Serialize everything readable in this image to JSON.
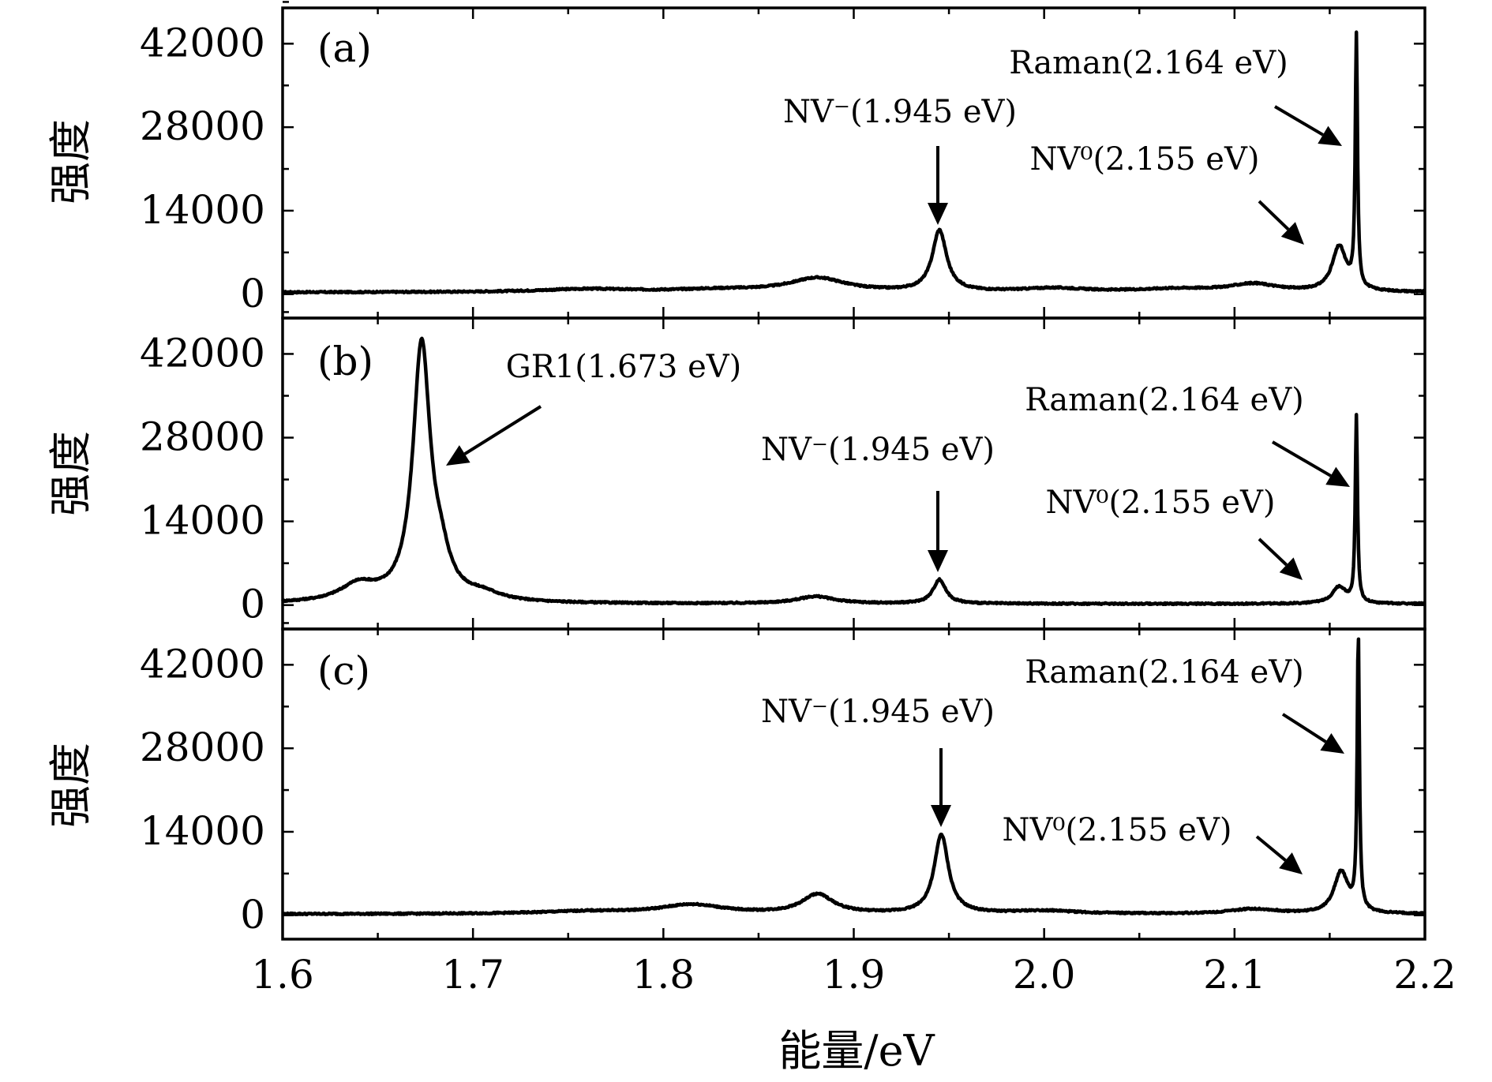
{
  "chart_data": [
    {
      "panel": "(a)",
      "type": "line",
      "xlabel": "能量/eV",
      "ylabel": "强度",
      "xlim": [
        1.6,
        2.2
      ],
      "ylim": [
        -4000,
        48000
      ],
      "x_ticks": [
        "1.6",
        "1.7",
        "1.8",
        "1.9",
        "2.0",
        "2.1",
        "2.2"
      ],
      "y_ticks": [
        "0",
        "14000",
        "28000",
        "42000"
      ],
      "y_tick_values": [
        0,
        14000,
        28000,
        42000
      ],
      "grid": false,
      "baseline": 300,
      "peaks": [
        {
          "center": 1.76,
          "height": 500,
          "width": 0.03
        },
        {
          "center": 1.83,
          "height": 400,
          "width": 0.03
        },
        {
          "center": 1.881,
          "height": 2300,
          "width": 0.018
        },
        {
          "center": 1.945,
          "height": 10200,
          "width": 0.0045
        },
        {
          "center": 2.005,
          "height": 600,
          "width": 0.02
        },
        {
          "center": 2.07,
          "height": 500,
          "width": 0.025
        },
        {
          "center": 2.11,
          "height": 1300,
          "width": 0.015
        },
        {
          "center": 2.155,
          "height": 7500,
          "width": 0.0045
        },
        {
          "center": 2.164,
          "height": 42000,
          "width": 0.0007
        }
      ],
      "annotations": [
        {
          "text": "Raman(2.164 eV)",
          "x": 2.164,
          "y": 42000
        },
        {
          "text": "NV⁻(1.945 eV)",
          "x": 1.945,
          "y": 10200
        },
        {
          "text": "NV⁰(2.155 eV)",
          "x": 2.155,
          "y": 7500
        }
      ]
    },
    {
      "panel": "(b)",
      "type": "line",
      "xlabel": "能量/eV",
      "ylabel": "强度",
      "xlim": [
        1.6,
        2.2
      ],
      "ylim": [
        -4000,
        48000
      ],
      "x_ticks": [
        "1.6",
        "1.7",
        "1.8",
        "1.9",
        "2.0",
        "2.1",
        "2.2"
      ],
      "y_ticks": [
        "0",
        "14000",
        "28000",
        "42000"
      ],
      "y_tick_values": [
        0,
        14000,
        28000,
        42000
      ],
      "grid": false,
      "baseline": 200,
      "peaks": [
        {
          "center": 1.64,
          "height": 2800,
          "width": 0.012
        },
        {
          "center": 1.673,
          "height": 42500,
          "width": 0.0055
        },
        {
          "center": 1.683,
          "height": 5000,
          "width": 0.006
        },
        {
          "center": 1.705,
          "height": 1200,
          "width": 0.012
        },
        {
          "center": 1.88,
          "height": 1200,
          "width": 0.012
        },
        {
          "center": 1.945,
          "height": 4000,
          "width": 0.004
        },
        {
          "center": 2.155,
          "height": 2800,
          "width": 0.0045
        },
        {
          "center": 2.164,
          "height": 31000,
          "width": 0.0007
        }
      ],
      "annotations": [
        {
          "text": "GR1(1.673 eV)",
          "x": 1.673,
          "y": 42500
        },
        {
          "text": "Raman(2.164 eV)",
          "x": 2.164,
          "y": 31000
        },
        {
          "text": "NV⁻(1.945 eV)",
          "x": 1.945,
          "y": 4000
        },
        {
          "text": "NV⁰(2.155 eV)",
          "x": 2.155,
          "y": 2800
        }
      ]
    },
    {
      "panel": "(c)",
      "type": "line",
      "xlabel": "能量/eV",
      "ylabel": "强度",
      "xlim": [
        1.6,
        2.2
      ],
      "ylim": [
        -4000,
        48000
      ],
      "x_ticks": [
        "1.6",
        "1.7",
        "1.8",
        "1.9",
        "2.0",
        "2.1",
        "2.2"
      ],
      "y_ticks": [
        "0",
        "14000",
        "28000",
        "42000"
      ],
      "y_tick_values": [
        0,
        14000,
        28000,
        42000
      ],
      "grid": false,
      "baseline": 200,
      "peaks": [
        {
          "center": 1.76,
          "height": 400,
          "width": 0.03
        },
        {
          "center": 1.815,
          "height": 1500,
          "width": 0.02
        },
        {
          "center": 1.881,
          "height": 3200,
          "width": 0.01
        },
        {
          "center": 1.946,
          "height": 13200,
          "width": 0.0045
        },
        {
          "center": 2.0,
          "height": 500,
          "width": 0.02
        },
        {
          "center": 2.11,
          "height": 800,
          "width": 0.015
        },
        {
          "center": 2.156,
          "height": 7000,
          "width": 0.0045
        },
        {
          "center": 2.165,
          "height": 46000,
          "width": 0.0007
        }
      ],
      "annotations": [
        {
          "text": "Raman(2.164 eV)",
          "x": 2.164,
          "y": 46000
        },
        {
          "text": "NV⁻(1.945 eV)",
          "x": 1.945,
          "y": 13200
        },
        {
          "text": "NV⁰(2.155 eV)",
          "x": 2.155,
          "y": 7000
        }
      ]
    }
  ]
}
